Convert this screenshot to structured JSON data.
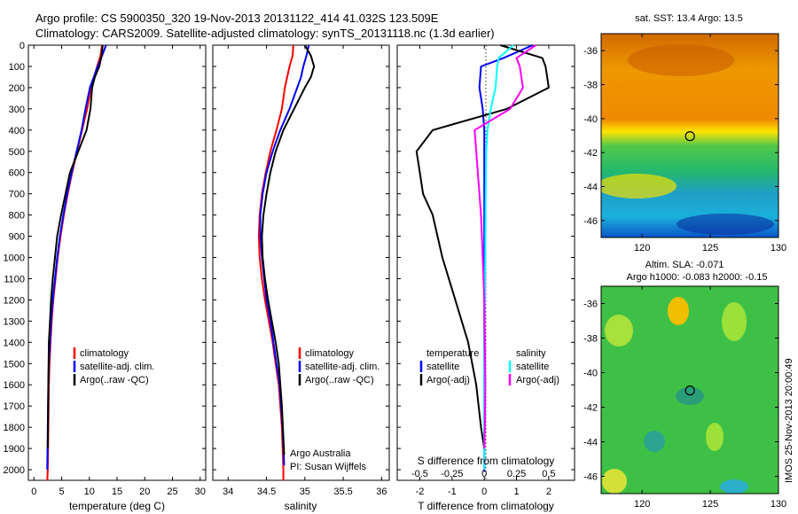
{
  "header": {
    "line1": "Argo profile: CS 5900350_320 19-Nov-2013 20131122_414 41.032S 123.509E",
    "line2": "Climatology: CARS2009. Satellite-adjusted climatology: synTS_20131118.nc (1.3d earlier)"
  },
  "colors": {
    "climatology": "#ff0000",
    "satellite": "#0000ff",
    "argo": "#000000",
    "salinity_satellite": "#00ffff",
    "salinity_argo": "#ff00ff"
  },
  "chart_data": [
    {
      "type": "line",
      "name": "temperature-profile",
      "xlabel": "temperature (deg C)",
      "xlim": [
        -1,
        31
      ],
      "ylim": [
        2050,
        0
      ],
      "xticks": [
        0,
        5,
        10,
        15,
        20,
        25,
        30
      ],
      "yticks": [
        0,
        100,
        200,
        300,
        400,
        500,
        600,
        700,
        800,
        900,
        1000,
        1100,
        1200,
        1300,
        1400,
        1500,
        1600,
        1700,
        1800,
        1900,
        2000
      ],
      "legend": [
        "climatology",
        "satellite-adj. clim.",
        "Argo(..raw -QC)"
      ],
      "series": [
        {
          "name": "climatology",
          "color": "#ff0000",
          "x": [
            12.3,
            12.0,
            11.4,
            10.9,
            10.3,
            9.6,
            8.7,
            7.8,
            6.9,
            6.1,
            5.4,
            4.8,
            4.3,
            3.9,
            3.5,
            3.2,
            3.0,
            2.8,
            2.7,
            2.6,
            2.5,
            2.4
          ],
          "y": [
            0,
            50,
            100,
            150,
            200,
            300,
            400,
            500,
            600,
            700,
            800,
            900,
            1000,
            1100,
            1200,
            1300,
            1400,
            1500,
            1600,
            1800,
            2000,
            2050
          ]
        },
        {
          "name": "satellite-adj. clim.",
          "color": "#0000ff",
          "x": [
            13.0,
            12.3,
            11.5,
            10.8,
            10.1,
            9.3,
            8.6,
            7.7,
            6.8,
            6.0,
            5.3,
            4.7,
            4.2,
            3.8,
            3.4,
            3.1,
            2.9,
            2.7,
            2.6,
            2.5,
            2.4
          ],
          "y": [
            0,
            50,
            100,
            150,
            200,
            300,
            400,
            500,
            600,
            700,
            800,
            900,
            1000,
            1100,
            1200,
            1300,
            1400,
            1500,
            1600,
            1800,
            2000
          ]
        },
        {
          "name": "Argo(..raw -QC)",
          "color": "#000000",
          "x": [
            12.4,
            12.2,
            11.8,
            11.0,
            10.5,
            10.2,
            9.5,
            8.0,
            6.5,
            5.7,
            4.9,
            4.2,
            3.8,
            3.4,
            3.1,
            2.9,
            2.7,
            2.6,
            2.5
          ],
          "y": [
            0,
            50,
            100,
            150,
            200,
            300,
            400,
            500,
            600,
            700,
            800,
            900,
            1000,
            1100,
            1200,
            1300,
            1400,
            1600,
            1900
          ]
        }
      ]
    },
    {
      "type": "line",
      "name": "salinity-profile",
      "xlabel": "salinity",
      "xlim": [
        33.8,
        36.1
      ],
      "ylim": [
        2050,
        0
      ],
      "xticks": [
        34,
        34.5,
        35,
        35.5,
        36
      ],
      "legend": [
        "climatology",
        "satellite-adj. clim.",
        "Argo(..raw -QC)"
      ],
      "annotation": [
        "Argo Australia",
        "PI: Susan Wijffels"
      ],
      "series": [
        {
          "name": "climatology",
          "color": "#ff0000",
          "x": [
            34.85,
            34.84,
            34.8,
            34.77,
            34.74,
            34.7,
            34.63,
            34.55,
            34.49,
            34.44,
            34.41,
            34.4,
            34.41,
            34.44,
            34.48,
            34.53,
            34.58,
            34.62,
            34.66,
            34.7,
            34.72,
            34.72
          ],
          "y": [
            0,
            50,
            100,
            150,
            200,
            300,
            400,
            500,
            600,
            700,
            800,
            900,
            1000,
            1100,
            1200,
            1300,
            1400,
            1500,
            1600,
            1800,
            2000,
            2050
          ]
        },
        {
          "name": "satellite-adj. clim.",
          "color": "#0000ff",
          "x": [
            35.05,
            35.02,
            34.98,
            34.95,
            34.9,
            34.8,
            34.68,
            34.58,
            34.5,
            34.45,
            34.42,
            34.42,
            34.44,
            34.47,
            34.5,
            34.55,
            34.59,
            34.63,
            34.67,
            34.71,
            34.73
          ],
          "y": [
            0,
            50,
            100,
            150,
            200,
            300,
            400,
            500,
            600,
            700,
            800,
            900,
            1000,
            1100,
            1200,
            1300,
            1400,
            1500,
            1600,
            1800,
            1980
          ]
        },
        {
          "name": "Argo(..raw -QC)",
          "color": "#000000",
          "x": [
            35.0,
            35.08,
            35.12,
            35.08,
            35.0,
            34.86,
            34.72,
            34.62,
            34.55,
            34.5,
            34.46,
            34.44,
            34.45,
            34.48,
            34.52,
            34.57,
            34.62,
            34.66,
            34.7,
            34.73
          ],
          "y": [
            0,
            50,
            100,
            150,
            200,
            300,
            400,
            500,
            600,
            700,
            800,
            900,
            1000,
            1100,
            1200,
            1300,
            1400,
            1500,
            1700,
            1930
          ]
        }
      ]
    },
    {
      "type": "line",
      "name": "difference-profile",
      "xlabel": "T difference from climatology",
      "top_xlabel": "S difference from climatology",
      "xlim": [
        -2.7,
        2.8
      ],
      "ylim": [
        2050,
        0
      ],
      "xticks": [
        -2,
        -1,
        0,
        1,
        2
      ],
      "top_ticks": [
        "-0.5",
        "-0.25",
        "0",
        "0.25",
        "0.5"
      ],
      "legend": {
        "temperature_header": "temperature",
        "salinity_header": "salinity",
        "satellite": "satellite",
        "argo": "Argo(-adj)"
      },
      "series": [
        {
          "name": "temperature satellite",
          "color": "#0000ff",
          "x": [
            1.5,
            0.6,
            -0.1,
            -0.15,
            -0.05,
            0.0,
            0.0,
            0.0,
            0.0,
            0.0,
            0.0,
            0.0,
            0.0,
            0.0,
            0.0,
            0.0,
            0.0,
            0.0
          ],
          "y": [
            0,
            60,
            100,
            200,
            300,
            400,
            500,
            600,
            800,
            1000,
            1200,
            1400,
            1600,
            1800,
            1900,
            1950,
            2000,
            2010
          ]
        },
        {
          "name": "temperature Argo(-adj)",
          "color": "#000000",
          "x": [
            0.5,
            1.8,
            1.9,
            2.0,
            0.7,
            -1.6,
            -2.1,
            -2.0,
            -1.9,
            -1.6,
            -1.3,
            -0.9,
            -0.5,
            -0.25,
            -0.1,
            0.0
          ],
          "y": [
            0,
            60,
            100,
            200,
            300,
            400,
            500,
            600,
            700,
            800,
            1000,
            1200,
            1400,
            1600,
            1800,
            1900
          ]
        },
        {
          "name": "salinity satellite",
          "color": "#00ffff",
          "x": [
            0.9,
            0.45,
            0.4,
            0.35,
            0.2,
            0.1,
            0.06,
            0.05,
            0.04,
            0.03,
            0.02,
            0.01,
            0.0,
            0.0
          ],
          "y": [
            0,
            60,
            100,
            200,
            300,
            400,
            500,
            600,
            800,
            1000,
            1200,
            1400,
            1600,
            2000
          ]
        },
        {
          "name": "salinity Argo(-adj)",
          "color": "#ff00ff",
          "x": [
            1.6,
            1.0,
            1.1,
            1.2,
            0.8,
            -0.3,
            -0.2,
            -0.1,
            -0.05,
            0.0,
            0.02,
            0.03,
            0.02,
            0.0
          ],
          "y": [
            0,
            60,
            100,
            200,
            300,
            400,
            600,
            800,
            1000,
            1200,
            1400,
            1600,
            1800,
            1900
          ]
        }
      ]
    },
    {
      "type": "heatmap",
      "name": "sst-map",
      "title": "sat. SST: 13.4 Argo: 13.5",
      "xlim": [
        117,
        130
      ],
      "ylim": [
        -47,
        -35
      ],
      "xticks": [
        120,
        125,
        130
      ],
      "yticks": [
        -36,
        -38,
        -40,
        -42,
        -44,
        -46
      ],
      "argo_location": {
        "lon": 123.509,
        "lat": -41.032
      }
    },
    {
      "type": "heatmap",
      "name": "sla-map",
      "title_lines": [
        "Altim. SLA: -0.071",
        "Argo h1000: -0.083 h2000: -0.15"
      ],
      "xlim": [
        117,
        130
      ],
      "ylim": [
        -47,
        -35
      ],
      "xticks": [
        120,
        125,
        130
      ],
      "yticks": [
        -36,
        -38,
        -40,
        -42,
        -44,
        -46
      ],
      "argo_location": {
        "lon": 123.509,
        "lat": -41.032
      }
    }
  ],
  "side_caption": "IMOS 25-Nov-2013 20:00:49"
}
